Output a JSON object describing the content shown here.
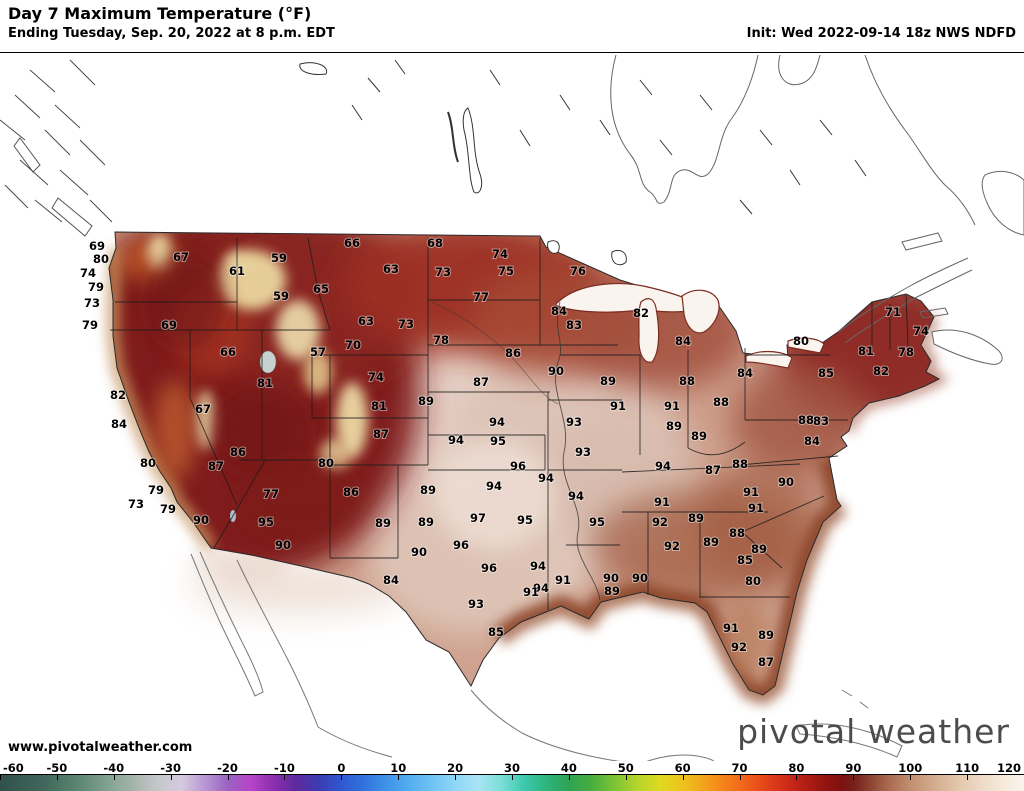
{
  "header": {
    "title": "Day 7 Maximum Temperature (°F)",
    "subtitle": "Ending Tuesday, Sep. 20, 2022 at 8 p.m. EDT",
    "init": "Init: Wed 2022-09-14 18z NWS NDFD"
  },
  "footer": {
    "website": "www.pivotalweather.com",
    "logo": "pivotal weather"
  },
  "colorbar": {
    "unit": "°F",
    "min": -60,
    "max": 120,
    "ticks": [
      -60,
      -50,
      -40,
      -30,
      -20,
      -10,
      0,
      10,
      20,
      30,
      40,
      50,
      60,
      70,
      80,
      90,
      100,
      110,
      120
    ],
    "stops": [
      {
        "t": -60,
        "c": "#30514a"
      },
      {
        "t": -52,
        "c": "#41685c"
      },
      {
        "t": -46,
        "c": "#5d8873"
      },
      {
        "t": -40,
        "c": "#8aa795"
      },
      {
        "t": -36,
        "c": "#aab6b0"
      },
      {
        "t": -32,
        "c": "#c6c9cc"
      },
      {
        "t": -28,
        "c": "#d6c9e0"
      },
      {
        "t": -24,
        "c": "#b897d2"
      },
      {
        "t": -20,
        "c": "#9a63c3"
      },
      {
        "t": -16,
        "c": "#b645c8"
      },
      {
        "t": -12,
        "c": "#8b2fb0"
      },
      {
        "t": -8,
        "c": "#5e2a9e"
      },
      {
        "t": -4,
        "c": "#3d3bb2"
      },
      {
        "t": 0,
        "c": "#2f58cf"
      },
      {
        "t": 4,
        "c": "#3173dd"
      },
      {
        "t": 8,
        "c": "#3f93e8"
      },
      {
        "t": 12,
        "c": "#54aef0"
      },
      {
        "t": 16,
        "c": "#6fc4f4"
      },
      {
        "t": 20,
        "c": "#8ed7f7"
      },
      {
        "t": 24,
        "c": "#a9e4f5"
      },
      {
        "t": 28,
        "c": "#7ddfd8"
      },
      {
        "t": 32,
        "c": "#3ec9ae"
      },
      {
        "t": 36,
        "c": "#2eb47e"
      },
      {
        "t": 40,
        "c": "#2fa254"
      },
      {
        "t": 44,
        "c": "#47ae3e"
      },
      {
        "t": 48,
        "c": "#7cc336"
      },
      {
        "t": 52,
        "c": "#b4d52b"
      },
      {
        "t": 56,
        "c": "#dfd921"
      },
      {
        "t": 60,
        "c": "#eec31d"
      },
      {
        "t": 64,
        "c": "#f3a01b"
      },
      {
        "t": 68,
        "c": "#f47c1b"
      },
      {
        "t": 72,
        "c": "#ee5a1c"
      },
      {
        "t": 76,
        "c": "#dc3a1a"
      },
      {
        "t": 80,
        "c": "#c02317"
      },
      {
        "t": 84,
        "c": "#9c1612"
      },
      {
        "t": 88,
        "c": "#7c120f"
      },
      {
        "t": 90,
        "c": "#77201a"
      },
      {
        "t": 92,
        "c": "#84372a"
      },
      {
        "t": 94,
        "c": "#95503c"
      },
      {
        "t": 96,
        "c": "#a86850"
      },
      {
        "t": 100,
        "c": "#c18f70"
      },
      {
        "t": 104,
        "c": "#d2ab8c"
      },
      {
        "t": 108,
        "c": "#e0c4a8"
      },
      {
        "t": 112,
        "c": "#ecd8c4"
      },
      {
        "t": 116,
        "c": "#f5e9da"
      },
      {
        "t": 120,
        "c": "#fbf4ec"
      }
    ]
  },
  "map": {
    "type": "temperature-heatmap",
    "region": "CONUS",
    "palette": {
      "hottest_light": "#e6d2c8",
      "warm_brown": "#a86848",
      "dark_red": "#8c1612",
      "coastal_tan": "#c08a5c",
      "coastal_brown": "#8e4c30",
      "mountain_cream": "#ecd79f"
    },
    "labels": [
      [
        69,
        97,
        246
      ],
      [
        80,
        101,
        259
      ],
      [
        74,
        88,
        273
      ],
      [
        79,
        96,
        287
      ],
      [
        73,
        92,
        303
      ],
      [
        79,
        90,
        325
      ],
      [
        67,
        181,
        257
      ],
      [
        61,
        237,
        271
      ],
      [
        59,
        279,
        258
      ],
      [
        59,
        281,
        296
      ],
      [
        65,
        321,
        289
      ],
      [
        69,
        169,
        325
      ],
      [
        66,
        228,
        352
      ],
      [
        66,
        352,
        243
      ],
      [
        68,
        435,
        243
      ],
      [
        63,
        391,
        269
      ],
      [
        73,
        443,
        272
      ],
      [
        74,
        500,
        254
      ],
      [
        75,
        506,
        271
      ],
      [
        76,
        578,
        271
      ],
      [
        77,
        481,
        297
      ],
      [
        63,
        366,
        321
      ],
      [
        73,
        406,
        324
      ],
      [
        78,
        441,
        340
      ],
      [
        57,
        318,
        352
      ],
      [
        70,
        353,
        345
      ],
      [
        74,
        376,
        377
      ],
      [
        81,
        265,
        383
      ],
      [
        67,
        203,
        409
      ],
      [
        82,
        118,
        395
      ],
      [
        84,
        119,
        424
      ],
      [
        81,
        379,
        406
      ],
      [
        87,
        381,
        434
      ],
      [
        89,
        426,
        401
      ],
      [
        87,
        481,
        382
      ],
      [
        84,
        559,
        311
      ],
      [
        83,
        574,
        325
      ],
      [
        82,
        641,
        313
      ],
      [
        84,
        683,
        341
      ],
      [
        86,
        513,
        353
      ],
      [
        90,
        556,
        371
      ],
      [
        89,
        608,
        381
      ],
      [
        88,
        687,
        381
      ],
      [
        84,
        745,
        373
      ],
      [
        80,
        801,
        341
      ],
      [
        85,
        826,
        373
      ],
      [
        82,
        881,
        371
      ],
      [
        81,
        866,
        351
      ],
      [
        78,
        906,
        352
      ],
      [
        71,
        893,
        312
      ],
      [
        74,
        921,
        331
      ],
      [
        94,
        497,
        422
      ],
      [
        95,
        498,
        441
      ],
      [
        94,
        456,
        440
      ],
      [
        93,
        574,
        422
      ],
      [
        91,
        618,
        406
      ],
      [
        91,
        672,
        406
      ],
      [
        89,
        674,
        426
      ],
      [
        88,
        721,
        402
      ],
      [
        88,
        806,
        420
      ],
      [
        83,
        821,
        421
      ],
      [
        84,
        812,
        441
      ],
      [
        88,
        740,
        464
      ],
      [
        89,
        699,
        436
      ],
      [
        87,
        713,
        470
      ],
      [
        86,
        238,
        452
      ],
      [
        87,
        216,
        466
      ],
      [
        80,
        326,
        463
      ],
      [
        77,
        271,
        494
      ],
      [
        86,
        351,
        492
      ],
      [
        80,
        148,
        463
      ],
      [
        79,
        156,
        490
      ],
      [
        73,
        136,
        504
      ],
      [
        79,
        168,
        509
      ],
      [
        90,
        201,
        520
      ],
      [
        95,
        266,
        522
      ],
      [
        90,
        283,
        545
      ],
      [
        96,
        518,
        466
      ],
      [
        94,
        546,
        478
      ],
      [
        93,
        583,
        452
      ],
      [
        94,
        663,
        466
      ],
      [
        91,
        662,
        502
      ],
      [
        89,
        428,
        490
      ],
      [
        94,
        494,
        486
      ],
      [
        97,
        478,
        518
      ],
      [
        95,
        525,
        520
      ],
      [
        94,
        576,
        496
      ],
      [
        89,
        383,
        523
      ],
      [
        89,
        426,
        522
      ],
      [
        84,
        391,
        580
      ],
      [
        90,
        419,
        552
      ],
      [
        96,
        461,
        545
      ],
      [
        96,
        489,
        568
      ],
      [
        93,
        476,
        604
      ],
      [
        94,
        538,
        566
      ],
      [
        94,
        541,
        588
      ],
      [
        91,
        531,
        592
      ],
      [
        91,
        563,
        580
      ],
      [
        95,
        597,
        522
      ],
      [
        92,
        660,
        522
      ],
      [
        92,
        672,
        546
      ],
      [
        90,
        611,
        578
      ],
      [
        89,
        612,
        591
      ],
      [
        90,
        640,
        578
      ],
      [
        89,
        696,
        518
      ],
      [
        89,
        711,
        542
      ],
      [
        88,
        737,
        533
      ],
      [
        89,
        759,
        549
      ],
      [
        91,
        751,
        492
      ],
      [
        91,
        756,
        508
      ],
      [
        90,
        786,
        482
      ],
      [
        85,
        745,
        560
      ],
      [
        80,
        753,
        581
      ],
      [
        85,
        496,
        632
      ],
      [
        91,
        731,
        628
      ],
      [
        92,
        739,
        647
      ],
      [
        89,
        766,
        635
      ],
      [
        87,
        766,
        662
      ]
    ]
  }
}
